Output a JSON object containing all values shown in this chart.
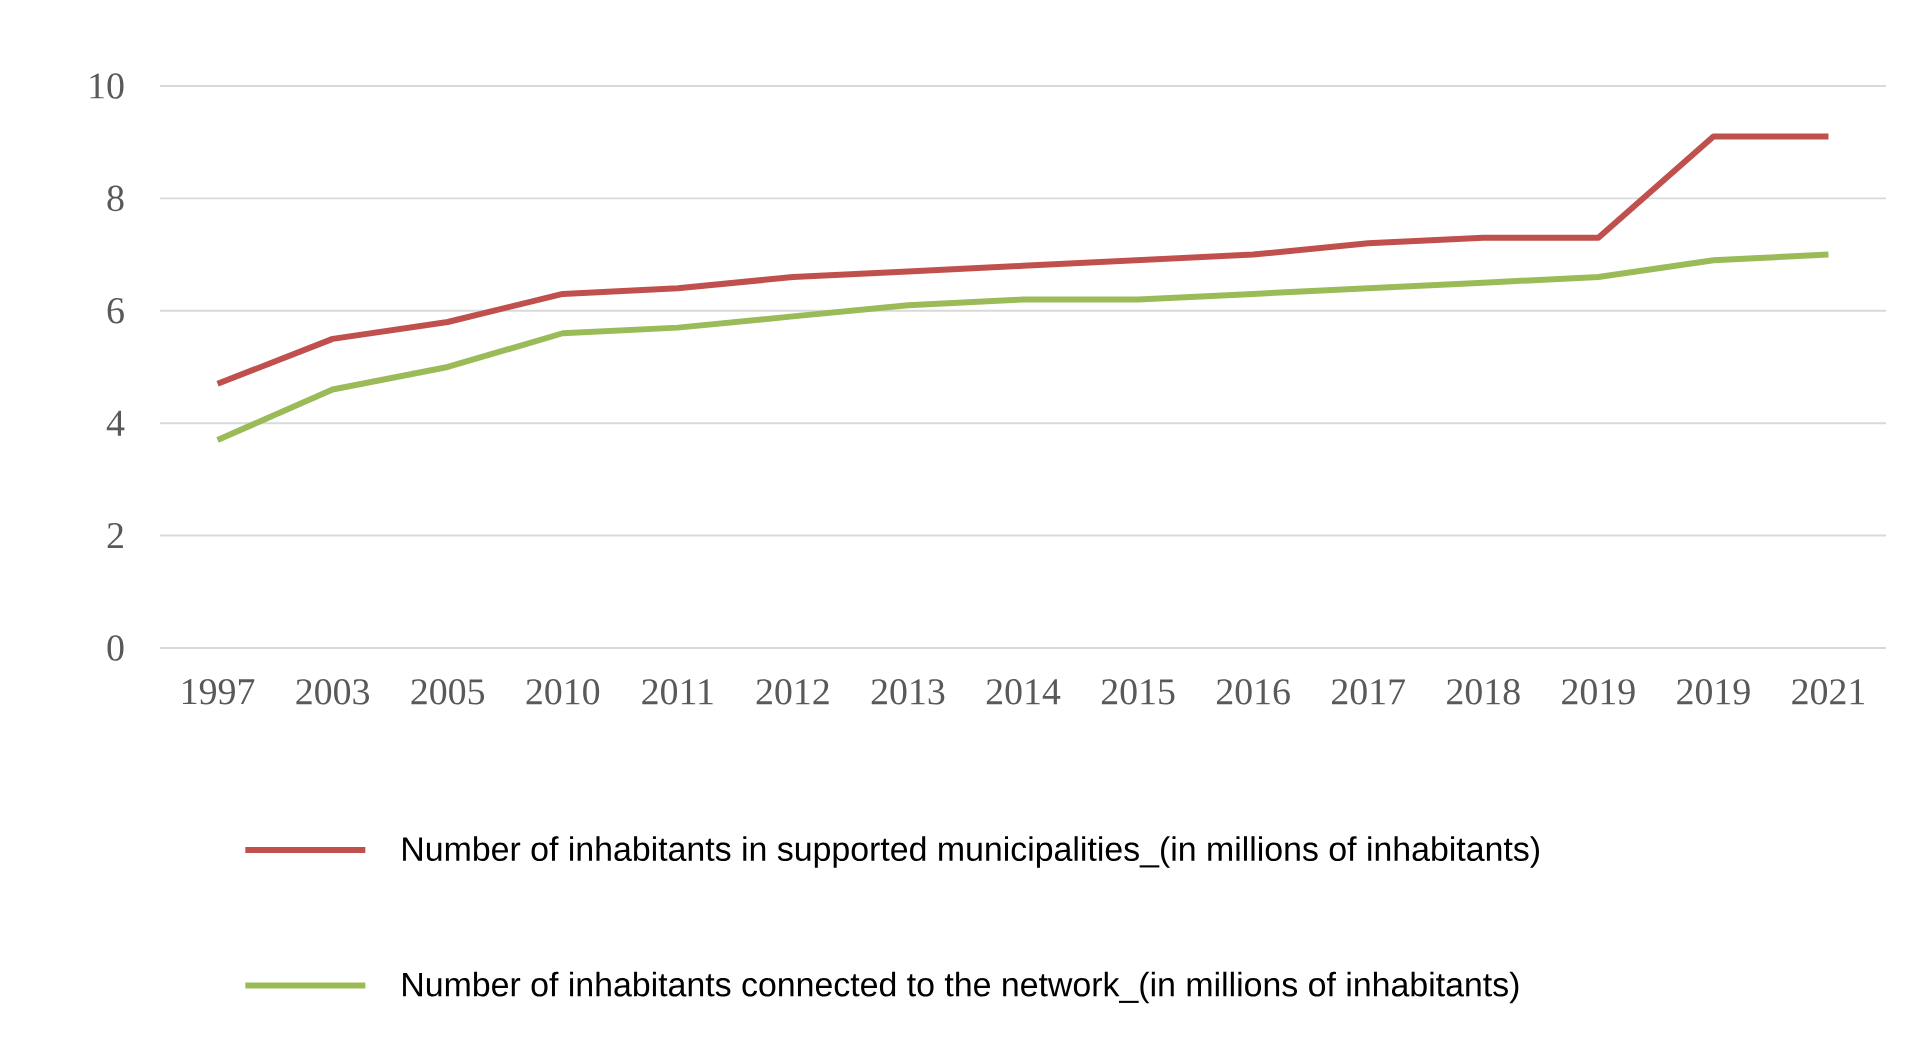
{
  "chart_data": {
    "type": "line",
    "categories": [
      "1997",
      "2003",
      "2005",
      "2010",
      "2011",
      "2012",
      "2013",
      "2014",
      "2015",
      "2016",
      "2017",
      "2018",
      "2019",
      "2019",
      "2021"
    ],
    "series": [
      {
        "name": "Number of inhabitants in supported municipalities_(in millions of inhabitants)",
        "color": "#c0504d",
        "values": [
          4.7,
          5.5,
          5.8,
          6.3,
          6.4,
          6.6,
          6.7,
          6.8,
          6.9,
          7.0,
          7.2,
          7.3,
          7.3,
          9.1,
          9.1
        ]
      },
      {
        "name": "Number of inhabitants connected to the network_(in millions of inhabitants)",
        "color": "#9bbb59",
        "values": [
          3.7,
          4.6,
          5.0,
          5.6,
          5.7,
          5.9,
          6.1,
          6.2,
          6.2,
          6.3,
          6.4,
          6.5,
          6.6,
          6.9,
          7.0
        ]
      }
    ],
    "ylim": [
      0,
      10
    ],
    "yticks": [
      0,
      2,
      4,
      6,
      8,
      10
    ],
    "grid": "y",
    "legend": "bottom left",
    "marker": "none",
    "line_style": "solid"
  }
}
